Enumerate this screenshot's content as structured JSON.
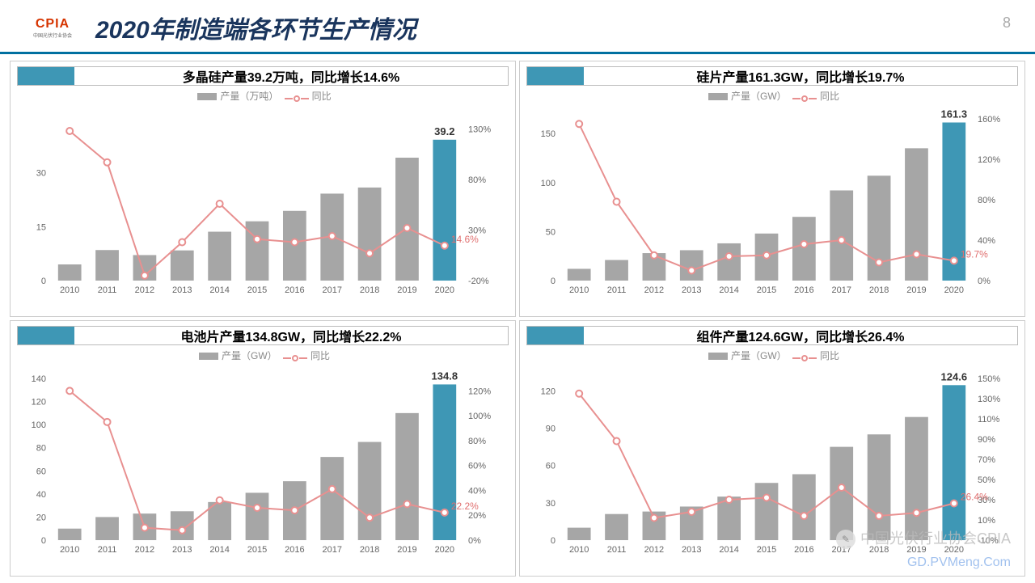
{
  "header": {
    "logo_main": "CPIA",
    "logo_sub": "中国光伏行业协会",
    "title": "2020年制造端各环节生产情况",
    "page_num": "8"
  },
  "colors": {
    "bar": "#a6a6a6",
    "bar_highlight": "#3e97b5",
    "line": "#e89090",
    "marker_fill": "#ffffff",
    "axis": "#666666",
    "header_underline": "#0070a0"
  },
  "legend": {
    "bar_label": "产量",
    "line_label": "同比"
  },
  "charts": [
    {
      "title": "多晶硅产量39.2万吨，同比增长14.6%",
      "bar_unit": "（万吨）",
      "categories": [
        "2010",
        "2011",
        "2012",
        "2013",
        "2014",
        "2015",
        "2016",
        "2017",
        "2018",
        "2019",
        "2020"
      ],
      "bar_values": [
        4.5,
        8.5,
        7.1,
        8.4,
        13.6,
        16.5,
        19.4,
        24.2,
        25.9,
        34.2,
        39.2
      ],
      "line_values": [
        128,
        97,
        -15,
        18,
        56,
        21,
        18,
        24,
        7,
        32,
        14.6
      ],
      "y_left": {
        "min": 0,
        "max": 45,
        "ticks": [
          0,
          15,
          30
        ]
      },
      "y_right": {
        "min": -20,
        "max": 140,
        "ticks": [
          -20,
          30,
          80,
          130
        ],
        "fmt": "pct"
      },
      "highlight_index": 10,
      "top_label": {
        "index": 10,
        "text": "39.2"
      },
      "end_pct_label": "14.6%"
    },
    {
      "title": "硅片产量161.3GW，同比增长19.7%",
      "bar_unit": "（GW）",
      "categories": [
        "2010",
        "2011",
        "2012",
        "2013",
        "2014",
        "2015",
        "2016",
        "2017",
        "2018",
        "2019",
        "2020"
      ],
      "bar_values": [
        12,
        21,
        28,
        31,
        38,
        48,
        65,
        92,
        107,
        135,
        161.3
      ],
      "line_values": [
        155,
        78,
        25,
        10,
        24,
        25,
        36,
        40,
        18,
        26,
        19.7
      ],
      "y_left": {
        "min": 0,
        "max": 165,
        "ticks": [
          0,
          50,
          100,
          150
        ]
      },
      "y_right": {
        "min": 0,
        "max": 160,
        "ticks": [
          0,
          40,
          80,
          120,
          160
        ],
        "fmt": "pct"
      },
      "highlight_index": 10,
      "top_label": {
        "index": 10,
        "text": "161.3"
      },
      "end_pct_label": "19.7%"
    },
    {
      "title": "电池片产量134.8GW，同比增长22.2%",
      "bar_unit": "（GW）",
      "categories": [
        "2010",
        "2011",
        "2012",
        "2013",
        "2014",
        "2015",
        "2016",
        "2017",
        "2018",
        "2019",
        "2020"
      ],
      "bar_values": [
        10,
        20,
        23,
        25,
        33,
        41,
        51,
        72,
        85,
        110,
        134.8
      ],
      "line_values": [
        120,
        95,
        10,
        8,
        32,
        26,
        24,
        41,
        18,
        29,
        22.2
      ],
      "y_left": {
        "min": 0,
        "max": 140,
        "ticks": [
          0,
          20,
          40,
          60,
          80,
          100,
          120,
          140
        ]
      },
      "y_right": {
        "min": 0,
        "max": 130,
        "ticks": [
          0,
          20,
          40,
          60,
          80,
          100,
          120
        ],
        "fmt": "pct"
      },
      "highlight_index": 10,
      "top_label": {
        "index": 10,
        "text": "134.8"
      },
      "end_pct_label": "22.2%"
    },
    {
      "title": "组件产量124.6GW，同比增长26.4%",
      "bar_unit": "（GW）",
      "categories": [
        "2010",
        "2011",
        "2012",
        "2013",
        "2014",
        "2015",
        "2016",
        "2017",
        "2018",
        "2019",
        "2020"
      ],
      "bar_values": [
        10,
        21,
        23,
        27,
        35,
        46,
        53,
        75,
        85,
        99,
        124.6
      ],
      "line_values": [
        135,
        88,
        12,
        18,
        30,
        32,
        14,
        42,
        14,
        17,
        26.4
      ],
      "y_left": {
        "min": 0,
        "max": 130,
        "ticks": [
          0,
          30,
          60,
          90,
          120
        ]
      },
      "y_right": {
        "min": -10,
        "max": 150,
        "ticks": [
          -10,
          10,
          30,
          50,
          70,
          90,
          110,
          130,
          150
        ],
        "fmt": "pct"
      },
      "highlight_index": 10,
      "top_label": {
        "index": 10,
        "text": "124.6"
      },
      "end_pct_label": "26.4%"
    }
  ],
  "watermark": {
    "line1": "中国光伏行业协会CPIA",
    "line2": "GD.PVMeng.Com"
  }
}
